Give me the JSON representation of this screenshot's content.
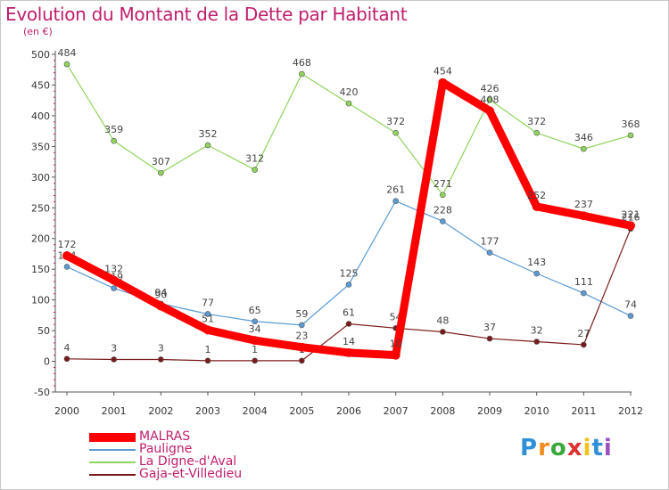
{
  "title": "Evolution du Montant de la Dette par Habitant",
  "subtitle": "(en €)",
  "logo_text": "Proxiti",
  "chart_data": {
    "type": "line",
    "x": [
      "2000",
      "2001",
      "2002",
      "2003",
      "2004",
      "2005",
      "2006",
      "2007",
      "2008",
      "2009",
      "2010",
      "2011",
      "2012"
    ],
    "ylim": [
      -50,
      500
    ],
    "yticks": [
      -50,
      0,
      50,
      100,
      150,
      200,
      250,
      300,
      350,
      400,
      450,
      500
    ],
    "grid": false,
    "legend_position": "bottom-left",
    "series": [
      {
        "name": "MALRAS",
        "color": "#ff0000",
        "emphasis": true,
        "values": [
          172,
          132,
          90,
          51,
          34,
          23,
          14,
          10,
          454,
          408,
          252,
          237,
          221
        ]
      },
      {
        "name": "Pauligne",
        "color": "#5b9bd5",
        "values": [
          154,
          119,
          94,
          77,
          65,
          59,
          125,
          261,
          228,
          177,
          143,
          111,
          74
        ]
      },
      {
        "name": "La Digne-d'Aval",
        "color": "#8fd45c",
        "values": [
          484,
          359,
          307,
          352,
          312,
          468,
          420,
          372,
          271,
          426,
          372,
          346,
          368
        ]
      },
      {
        "name": "Gaja-et-Villedieu",
        "color": "#7b1a1a",
        "values": [
          4,
          3,
          3,
          1,
          1,
          1,
          61,
          54,
          48,
          37,
          32,
          27,
          216
        ]
      }
    ]
  }
}
